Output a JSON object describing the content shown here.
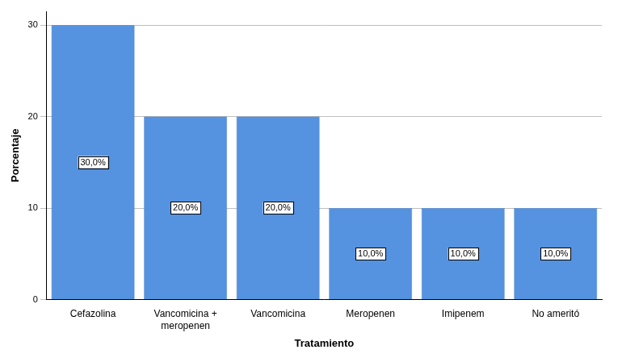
{
  "chart_data": {
    "type": "bar",
    "x_label": "Tratamiento",
    "y_label": "Porcentaje",
    "categories": [
      "Cefazolina",
      "Vancomicina + meropenen",
      "Vancomicina",
      "Meropenen",
      "Imipenem",
      "No ameritó"
    ],
    "values": [
      30,
      20,
      20,
      10,
      10,
      10
    ],
    "value_labels": [
      "30,0%",
      "20,0%",
      "20,0%",
      "10,0%",
      "10,0%",
      "10,0%"
    ],
    "data_labels": true,
    "color": "#5592e0",
    "ylim": [
      0,
      31.5
    ],
    "yticks": [
      0,
      10,
      20,
      30
    ],
    "grid": true
  }
}
